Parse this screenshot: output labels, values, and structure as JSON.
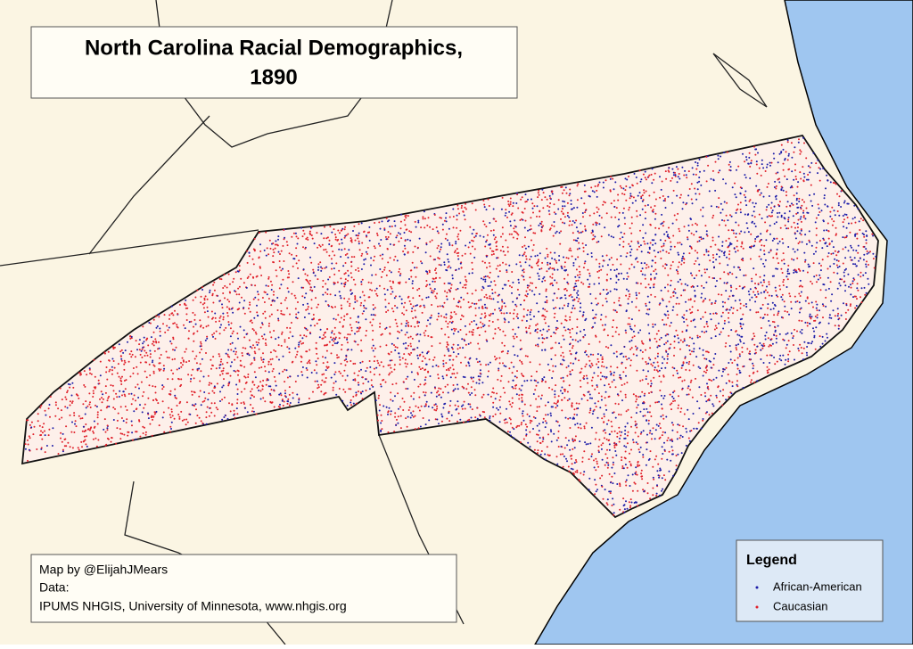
{
  "title": [
    "North Carolina Racial Demographics,",
    "1890"
  ],
  "credits": [
    "Map by @ElijahJMears",
    "Data:",
    "IPUMS NHGIS, University of Minnesota, www.nhgis.org"
  ],
  "legend": {
    "title": "Legend",
    "items": [
      {
        "label": "African-American",
        "color": "#1c1ca8"
      },
      {
        "label": "Caucasian",
        "color": "#e0202a"
      }
    ]
  }
}
